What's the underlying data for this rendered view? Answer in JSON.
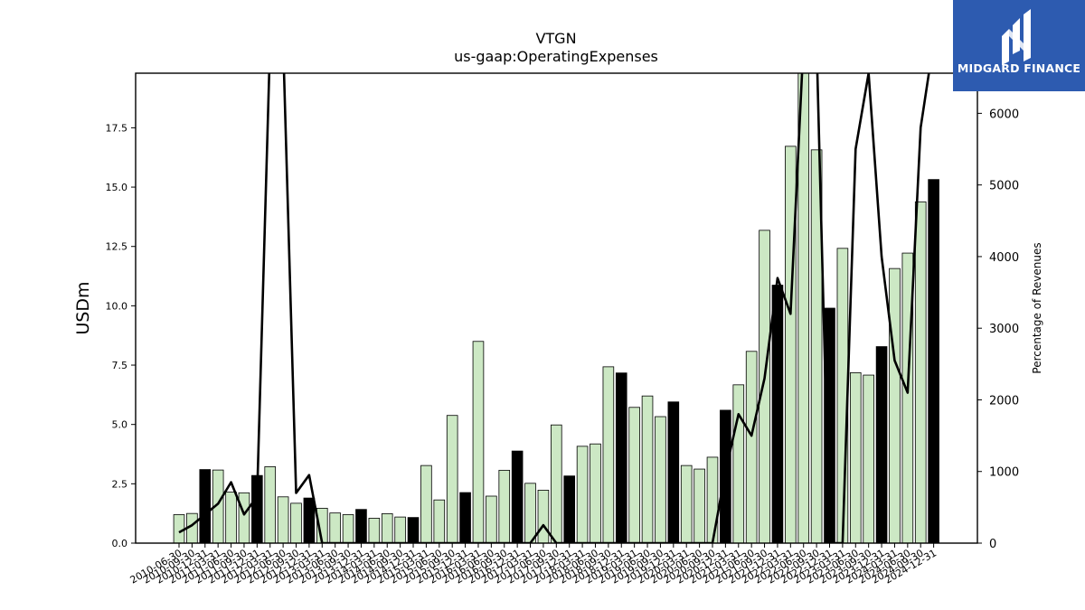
{
  "logo": {
    "text": "MIDGARD FINANCE",
    "background": "#2d5bb0"
  },
  "chart_data": {
    "type": "bar",
    "title": "VTGN",
    "subtitle": "us-gaap:OperatingExpenses",
    "ylabel": "USDm",
    "y2label": "Percentage of Revenues",
    "ylim": [
      0,
      19.8
    ],
    "y2lim": [
      0,
      6560
    ],
    "yticks": [
      "0.0",
      "2.5",
      "5.0",
      "7.5",
      "10.0",
      "12.5",
      "15.0",
      "17.5"
    ],
    "y2ticks": [
      "0",
      "1000",
      "2000",
      "3000",
      "4000",
      "5000",
      "6000"
    ],
    "bar_color_quarter": "#cce8c4",
    "bar_color_annual": "#000000",
    "line_color": "#000000",
    "categories": [
      "2010-06-30",
      "2010-09-30",
      "2010-12-31",
      "2011-03-31",
      "2011-06-30",
      "2011-09-30",
      "2011-12-31",
      "2012-03-31",
      "2012-06-30",
      "2012-09-30",
      "2012-12-31",
      "2013-03-31",
      "2013-06-30",
      "2013-09-30",
      "2013-12-31",
      "2014-03-31",
      "2014-06-30",
      "2014-09-30",
      "2014-12-31",
      "2015-03-31",
      "2015-06-30",
      "2015-09-30",
      "2015-12-31",
      "2016-03-31",
      "2016-06-30",
      "2016-09-30",
      "2016-12-31",
      "2017-03-31",
      "2017-06-30",
      "2017-09-30",
      "2017-12-31",
      "2018-03-31",
      "2018-06-30",
      "2018-09-30",
      "2018-12-31",
      "2019-03-31",
      "2019-06-30",
      "2019-09-30",
      "2019-12-31",
      "2020-03-31",
      "2020-06-30",
      "2020-09-30",
      "2020-12-31",
      "2021-03-31",
      "2021-06-30",
      "2021-09-30",
      "2021-12-31",
      "2022-03-31",
      "2022-06-30",
      "2022-09-30",
      "2022-12-31",
      "2023-03-31",
      "2023-06-30",
      "2023-09-30",
      "2023-12-31",
      "2024-03-31",
      "2024-06-30",
      "2024-09-30",
      "2024-12-31"
    ],
    "values": [
      1.2,
      1.25,
      3.1,
      3.08,
      2.15,
      2.12,
      2.85,
      3.22,
      1.95,
      1.68,
      1.9,
      1.47,
      1.27,
      1.2,
      1.42,
      1.05,
      1.24,
      1.1,
      1.08,
      3.27,
      1.82,
      5.38,
      2.13,
      8.5,
      1.98,
      3.07,
      3.88,
      2.52,
      2.23,
      4.98,
      2.83,
      4.08,
      4.18,
      7.43,
      7.17,
      5.72,
      6.2,
      5.33,
      5.95,
      3.27,
      3.12,
      3.62,
      5.6,
      6.67,
      8.08,
      13.18,
      10.87,
      16.72,
      19.8,
      16.57,
      9.9,
      12.42,
      7.18,
      7.08,
      8.28,
      11.57,
      12.22,
      14.38,
      15.32
    ],
    "annual": [
      false,
      false,
      true,
      false,
      false,
      false,
      true,
      false,
      false,
      false,
      true,
      false,
      false,
      false,
      true,
      false,
      false,
      false,
      true,
      false,
      false,
      false,
      true,
      false,
      false,
      false,
      true,
      false,
      false,
      false,
      true,
      false,
      false,
      false,
      true,
      false,
      false,
      false,
      true,
      false,
      false,
      false,
      true,
      false,
      false,
      false,
      true,
      false,
      false,
      false,
      true,
      false,
      false,
      false,
      true,
      false,
      false,
      false,
      true
    ],
    "pct_of_revenues": [
      150,
      250,
      400,
      550,
      850,
      400,
      650,
      7000,
      7000,
      700,
      950,
      0,
      0,
      0,
      0,
      0,
      0,
      0,
      0,
      0,
      0,
      0,
      0,
      0,
      0,
      0,
      0,
      0,
      250,
      0,
      0,
      0,
      0,
      0,
      0,
      0,
      0,
      0,
      0,
      0,
      0,
      0,
      1000,
      1800,
      1500,
      2300,
      3700,
      3200,
      7000,
      7000,
      0,
      0,
      5500,
      6560,
      4000,
      2550,
      2100,
      5800,
      7000
    ]
  }
}
